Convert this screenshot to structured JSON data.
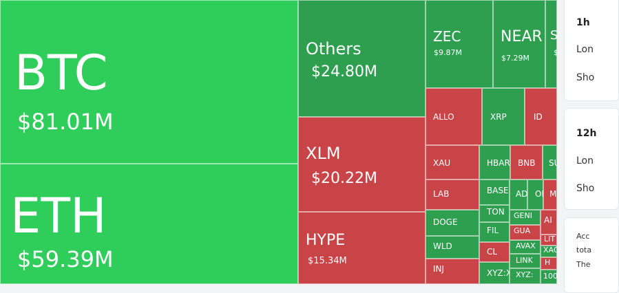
{
  "colors": {
    "green": "#2fce5b",
    "dark_green": "#2e9f4f",
    "red": "#c94447"
  },
  "treemap": [
    {
      "symbol": "BTC",
      "value": "$81.01M",
      "tone": "green"
    },
    {
      "symbol": "ETH",
      "value": "$59.39M",
      "tone": "green"
    },
    {
      "symbol": "Others",
      "value": "$24.80M",
      "tone": "dark_green"
    },
    {
      "symbol": "XLM",
      "value": "$20.22M",
      "tone": "red"
    },
    {
      "symbol": "HYPE",
      "value": "$15.34M",
      "tone": "red"
    },
    {
      "symbol": "ZEC",
      "value": "$9.87M",
      "tone": "dark_green"
    },
    {
      "symbol": "NEAR",
      "value": "$7.29M",
      "tone": "dark_green"
    },
    {
      "symbol": "S",
      "value": "$",
      "tone": "dark_green"
    },
    {
      "symbol": "ALLO",
      "value": "",
      "tone": "red"
    },
    {
      "symbol": "XRP",
      "value": "",
      "tone": "dark_green"
    },
    {
      "symbol": "ID",
      "value": "",
      "tone": "red"
    },
    {
      "symbol": "XAU",
      "value": "",
      "tone": "red"
    },
    {
      "symbol": "HBAR",
      "value": "",
      "tone": "dark_green"
    },
    {
      "symbol": "BNB",
      "value": "",
      "tone": "red"
    },
    {
      "symbol": "SU",
      "value": "",
      "tone": "dark_green"
    },
    {
      "symbol": "LAB",
      "value": "",
      "tone": "red"
    },
    {
      "symbol": "BASE",
      "value": "",
      "tone": "dark_green"
    },
    {
      "symbol": "AD",
      "value": "",
      "tone": "dark_green"
    },
    {
      "symbol": "ON",
      "value": "",
      "tone": "dark_green"
    },
    {
      "symbol": "M",
      "value": "",
      "tone": "red"
    },
    {
      "symbol": "DOGE",
      "value": "",
      "tone": "dark_green"
    },
    {
      "symbol": "TON",
      "value": "",
      "tone": "dark_green"
    },
    {
      "symbol": "GENI",
      "value": "",
      "tone": "dark_green"
    },
    {
      "symbol": "AI",
      "value": "",
      "tone": "red"
    },
    {
      "symbol": "FIL",
      "value": "",
      "tone": "dark_green"
    },
    {
      "symbol": "GUA",
      "value": "",
      "tone": "red"
    },
    {
      "symbol": "LIT",
      "value": "",
      "tone": "red"
    },
    {
      "symbol": "WLD",
      "value": "",
      "tone": "dark_green"
    },
    {
      "symbol": "AVAX",
      "value": "",
      "tone": "dark_green"
    },
    {
      "symbol": "XAG",
      "value": "",
      "tone": "dark_green"
    },
    {
      "symbol": "CL",
      "value": "",
      "tone": "red"
    },
    {
      "symbol": "LINK",
      "value": "",
      "tone": "dark_green"
    },
    {
      "symbol": "H",
      "value": "",
      "tone": "red"
    },
    {
      "symbol": "INJ",
      "value": "",
      "tone": "red"
    },
    {
      "symbol": "XYZ:X",
      "value": "",
      "tone": "dark_green"
    },
    {
      "symbol": "XYZ:",
      "value": "",
      "tone": "dark_green"
    },
    {
      "symbol": "100",
      "value": "",
      "tone": "dark_green"
    }
  ],
  "sidebar": {
    "card1": {
      "title": "1h",
      "long": "Lon",
      "short": "Sho"
    },
    "card2": {
      "title": "12h",
      "long": "Lon",
      "short": "Sho"
    },
    "card3": {
      "line1": "Acc",
      "line2": "tota",
      "line3": "The"
    }
  }
}
